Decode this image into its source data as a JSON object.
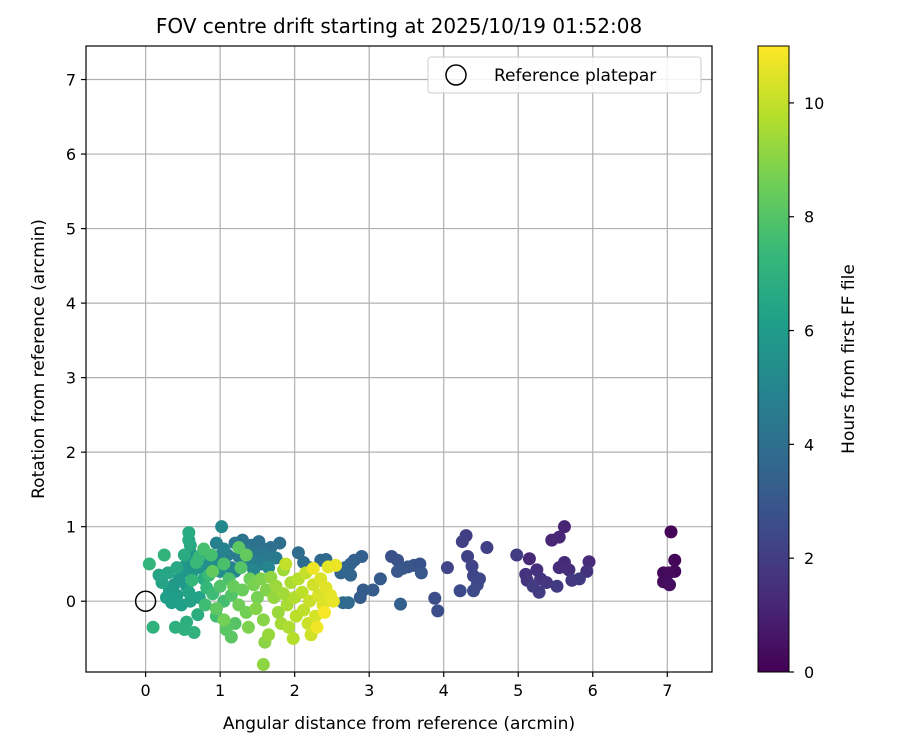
{
  "chart_data": {
    "type": "scatter",
    "title": "FOV centre drift starting at 2025/10/19 01:52:08",
    "xlabel": "Angular distance from reference (arcmin)",
    "ylabel": "Rotation from reference (arcmin)",
    "xlim": [
      -0.8,
      7.6
    ],
    "ylim": [
      -0.95,
      7.45
    ],
    "xticks": [
      0,
      1,
      2,
      3,
      4,
      5,
      6,
      7
    ],
    "yticks": [
      0,
      1,
      2,
      3,
      4,
      5,
      6,
      7
    ],
    "grid": true,
    "legend": {
      "placement": "top-right",
      "entries": [
        "Reference platepar"
      ]
    },
    "reference_point": {
      "x": 0,
      "y": 0
    },
    "colorbar": {
      "label": "Hours from first FF file",
      "range": [
        0,
        11
      ],
      "ticks": [
        0,
        2,
        4,
        6,
        8,
        10
      ],
      "colormap": "viridis",
      "colors": [
        "#440154",
        "#482878",
        "#3e4989",
        "#31688e",
        "#26828e",
        "#1f9e89",
        "#35b779",
        "#6ece58",
        "#b5de2b",
        "#fde725"
      ]
    },
    "points": [
      {
        "x": 7.05,
        "y": 0.93,
        "h": 0.1
      },
      {
        "x": 7.1,
        "y": 0.55,
        "h": 0.15
      },
      {
        "x": 7.1,
        "y": 0.4,
        "h": 0.2
      },
      {
        "x": 6.95,
        "y": 0.38,
        "h": 0.25
      },
      {
        "x": 7.02,
        "y": 0.38,
        "h": 0.3
      },
      {
        "x": 6.95,
        "y": 0.26,
        "h": 0.35
      },
      {
        "x": 7.03,
        "y": 0.22,
        "h": 0.4
      },
      {
        "x": 5.62,
        "y": 1.0,
        "h": 1.1
      },
      {
        "x": 5.55,
        "y": 0.86,
        "h": 1.15
      },
      {
        "x": 5.45,
        "y": 0.82,
        "h": 1.2
      },
      {
        "x": 5.15,
        "y": 0.57,
        "h": 1.25
      },
      {
        "x": 5.95,
        "y": 0.53,
        "h": 1.3
      },
      {
        "x": 5.62,
        "y": 0.52,
        "h": 1.35
      },
      {
        "x": 5.55,
        "y": 0.45,
        "h": 1.4
      },
      {
        "x": 5.68,
        "y": 0.42,
        "h": 1.45
      },
      {
        "x": 5.25,
        "y": 0.42,
        "h": 1.5
      },
      {
        "x": 5.1,
        "y": 0.36,
        "h": 1.55
      },
      {
        "x": 5.92,
        "y": 0.4,
        "h": 1.6
      },
      {
        "x": 5.3,
        "y": 0.3,
        "h": 1.65
      },
      {
        "x": 5.12,
        "y": 0.28,
        "h": 1.7
      },
      {
        "x": 5.38,
        "y": 0.25,
        "h": 1.75
      },
      {
        "x": 5.72,
        "y": 0.28,
        "h": 1.8
      },
      {
        "x": 5.82,
        "y": 0.3,
        "h": 1.85
      },
      {
        "x": 5.52,
        "y": 0.2,
        "h": 1.9
      },
      {
        "x": 5.2,
        "y": 0.2,
        "h": 1.95
      },
      {
        "x": 5.28,
        "y": 0.12,
        "h": 2.0
      },
      {
        "x": 4.98,
        "y": 0.62,
        "h": 2.0
      },
      {
        "x": 4.3,
        "y": 0.88,
        "h": 2.05
      },
      {
        "x": 4.25,
        "y": 0.8,
        "h": 2.1
      },
      {
        "x": 4.58,
        "y": 0.72,
        "h": 2.15
      },
      {
        "x": 4.32,
        "y": 0.6,
        "h": 2.2
      },
      {
        "x": 4.38,
        "y": 0.47,
        "h": 2.25
      },
      {
        "x": 4.05,
        "y": 0.45,
        "h": 2.3
      },
      {
        "x": 4.4,
        "y": 0.34,
        "h": 2.35
      },
      {
        "x": 4.48,
        "y": 0.3,
        "h": 2.4
      },
      {
        "x": 4.45,
        "y": 0.22,
        "h": 2.45
      },
      {
        "x": 4.22,
        "y": 0.14,
        "h": 2.5
      },
      {
        "x": 4.4,
        "y": 0.14,
        "h": 2.55
      },
      {
        "x": 3.88,
        "y": 0.04,
        "h": 2.6
      },
      {
        "x": 3.92,
        "y": -0.13,
        "h": 2.65
      },
      {
        "x": 3.3,
        "y": 0.6,
        "h": 2.7
      },
      {
        "x": 3.38,
        "y": 0.55,
        "h": 2.75
      },
      {
        "x": 3.68,
        "y": 0.5,
        "h": 2.8
      },
      {
        "x": 3.6,
        "y": 0.48,
        "h": 2.85
      },
      {
        "x": 3.45,
        "y": 0.44,
        "h": 2.9
      },
      {
        "x": 3.52,
        "y": 0.46,
        "h": 2.95
      },
      {
        "x": 3.38,
        "y": 0.4,
        "h": 3.0
      },
      {
        "x": 3.7,
        "y": 0.38,
        "h": 3.05
      },
      {
        "x": 3.15,
        "y": 0.3,
        "h": 3.1
      },
      {
        "x": 3.05,
        "y": 0.15,
        "h": 3.15
      },
      {
        "x": 2.92,
        "y": 0.15,
        "h": 3.2
      },
      {
        "x": 2.88,
        "y": 0.05,
        "h": 3.25
      },
      {
        "x": 3.42,
        "y": -0.04,
        "h": 3.3
      },
      {
        "x": 2.9,
        "y": 0.6,
        "h": 3.35
      },
      {
        "x": 2.8,
        "y": 0.55,
        "h": 3.4
      },
      {
        "x": 2.75,
        "y": 0.5,
        "h": 3.45
      },
      {
        "x": 2.68,
        "y": 0.45,
        "h": 3.5
      },
      {
        "x": 2.62,
        "y": 0.38,
        "h": 3.55
      },
      {
        "x": 2.75,
        "y": 0.35,
        "h": 3.6
      },
      {
        "x": 2.42,
        "y": 0.56,
        "h": 3.65
      },
      {
        "x": 2.35,
        "y": 0.55,
        "h": 3.7
      },
      {
        "x": 2.72,
        "y": -0.02,
        "h": 3.75
      },
      {
        "x": 2.65,
        "y": -0.02,
        "h": 3.8
      },
      {
        "x": 2.05,
        "y": 0.65,
        "h": 3.85
      },
      {
        "x": 2.12,
        "y": 0.52,
        "h": 3.9
      },
      {
        "x": 2.2,
        "y": 0.45,
        "h": 3.95
      },
      {
        "x": 1.8,
        "y": 0.78,
        "h": 4.0
      },
      {
        "x": 1.68,
        "y": 0.72,
        "h": 4.05
      },
      {
        "x": 1.52,
        "y": 0.8,
        "h": 4.1
      },
      {
        "x": 1.58,
        "y": 0.7,
        "h": 4.15
      },
      {
        "x": 1.42,
        "y": 0.75,
        "h": 4.2
      },
      {
        "x": 1.3,
        "y": 0.82,
        "h": 4.25
      },
      {
        "x": 1.2,
        "y": 0.78,
        "h": 4.3
      },
      {
        "x": 1.35,
        "y": 0.68,
        "h": 4.35
      },
      {
        "x": 1.48,
        "y": 0.62,
        "h": 4.4
      },
      {
        "x": 1.62,
        "y": 0.6,
        "h": 4.45
      },
      {
        "x": 1.75,
        "y": 0.58,
        "h": 4.5
      },
      {
        "x": 1.25,
        "y": 0.6,
        "h": 4.55
      },
      {
        "x": 1.1,
        "y": 0.62,
        "h": 4.6
      },
      {
        "x": 1.4,
        "y": 0.55,
        "h": 4.65
      },
      {
        "x": 1.55,
        "y": 0.5,
        "h": 4.7
      },
      {
        "x": 1.3,
        "y": 0.48,
        "h": 4.75
      },
      {
        "x": 1.15,
        "y": 0.45,
        "h": 4.8
      },
      {
        "x": 0.95,
        "y": 0.78,
        "h": 4.85
      },
      {
        "x": 1.05,
        "y": 0.7,
        "h": 4.9
      },
      {
        "x": 0.98,
        "y": 0.6,
        "h": 4.95
      },
      {
        "x": 1.2,
        "y": 0.4,
        "h": 5.0
      },
      {
        "x": 1.45,
        "y": 0.42,
        "h": 5.05
      },
      {
        "x": 1.65,
        "y": 0.45,
        "h": 5.1
      },
      {
        "x": 1.02,
        "y": 1.0,
        "h": 5.2
      },
      {
        "x": 0.85,
        "y": 0.55,
        "h": 5.3
      },
      {
        "x": 0.92,
        "y": 0.48,
        "h": 5.35
      },
      {
        "x": 0.8,
        "y": 0.42,
        "h": 5.4
      },
      {
        "x": 1.0,
        "y": 0.4,
        "h": 5.45
      },
      {
        "x": 0.75,
        "y": 0.6,
        "h": 5.5
      },
      {
        "x": 0.68,
        "y": 0.55,
        "h": 5.55
      },
      {
        "x": 0.6,
        "y": 0.65,
        "h": 5.6
      },
      {
        "x": 0.7,
        "y": 0.45,
        "h": 5.65
      },
      {
        "x": 0.55,
        "y": 0.5,
        "h": 5.7
      },
      {
        "x": 0.5,
        "y": 0.4,
        "h": 5.75
      },
      {
        "x": 0.62,
        "y": 0.38,
        "h": 5.8
      },
      {
        "x": 0.45,
        "y": 0.3,
        "h": 5.85
      },
      {
        "x": 0.38,
        "y": 0.22,
        "h": 5.9
      },
      {
        "x": 0.55,
        "y": 0.2,
        "h": 5.95
      },
      {
        "x": 0.32,
        "y": 0.15,
        "h": 6.0
      },
      {
        "x": 0.42,
        "y": 0.08,
        "h": 6.05
      },
      {
        "x": 0.28,
        "y": 0.05,
        "h": 6.1
      },
      {
        "x": 0.35,
        "y": -0.02,
        "h": 6.15
      },
      {
        "x": 0.48,
        "y": -0.05,
        "h": 6.2
      },
      {
        "x": 0.6,
        "y": 0.0,
        "h": 6.25
      },
      {
        "x": 0.72,
        "y": 0.05,
        "h": 6.3
      },
      {
        "x": 0.58,
        "y": 0.12,
        "h": 6.35
      },
      {
        "x": 0.22,
        "y": 0.25,
        "h": 6.4
      },
      {
        "x": 0.18,
        "y": 0.35,
        "h": 6.45
      },
      {
        "x": 0.3,
        "y": 0.38,
        "h": 6.5
      },
      {
        "x": 0.42,
        "y": 0.45,
        "h": 6.55
      },
      {
        "x": 0.58,
        "y": 0.82,
        "h": 6.6
      },
      {
        "x": 0.6,
        "y": 0.75,
        "h": 6.65
      },
      {
        "x": 0.58,
        "y": 0.92,
        "h": 6.7
      },
      {
        "x": 0.52,
        "y": 0.62,
        "h": 6.75
      },
      {
        "x": 0.78,
        "y": 0.3,
        "h": 6.8
      },
      {
        "x": 0.7,
        "y": -0.18,
        "h": 6.85
      },
      {
        "x": 0.55,
        "y": -0.28,
        "h": 6.9
      },
      {
        "x": 0.4,
        "y": -0.35,
        "h": 6.95
      },
      {
        "x": 0.52,
        "y": -0.38,
        "h": 7.0
      },
      {
        "x": 0.65,
        "y": -0.42,
        "h": 7.05
      },
      {
        "x": 0.1,
        "y": -0.35,
        "h": 7.1
      },
      {
        "x": 0.25,
        "y": 0.62,
        "h": 7.15
      },
      {
        "x": 0.05,
        "y": 0.5,
        "h": 7.2
      },
      {
        "x": 0.62,
        "y": 0.28,
        "h": 7.25
      },
      {
        "x": 0.82,
        "y": 0.18,
        "h": 7.3
      },
      {
        "x": 0.72,
        "y": 0.6,
        "h": 7.35
      },
      {
        "x": 0.68,
        "y": 0.52,
        "h": 7.4
      },
      {
        "x": 0.85,
        "y": 0.35,
        "h": 7.45
      },
      {
        "x": 0.9,
        "y": 0.1,
        "h": 7.5
      },
      {
        "x": 0.8,
        "y": -0.05,
        "h": 7.55
      },
      {
        "x": 0.95,
        "y": -0.2,
        "h": 7.6
      },
      {
        "x": 1.05,
        "y": 0.0,
        "h": 7.65
      },
      {
        "x": 0.88,
        "y": 0.62,
        "h": 7.7
      },
      {
        "x": 0.78,
        "y": 0.7,
        "h": 7.75
      },
      {
        "x": 1.05,
        "y": 0.5,
        "h": 7.8
      },
      {
        "x": 1.12,
        "y": 0.3,
        "h": 7.85
      },
      {
        "x": 1.0,
        "y": 0.2,
        "h": 7.9
      },
      {
        "x": 1.15,
        "y": 0.08,
        "h": 7.95
      },
      {
        "x": 1.28,
        "y": 0.45,
        "h": 8.0
      },
      {
        "x": 1.2,
        "y": -0.3,
        "h": 8.05
      },
      {
        "x": 1.08,
        "y": -0.38,
        "h": 8.1
      },
      {
        "x": 1.15,
        "y": -0.48,
        "h": 8.15
      },
      {
        "x": 1.25,
        "y": 0.72,
        "h": 8.2
      },
      {
        "x": 0.95,
        "y": -0.1,
        "h": 8.25
      },
      {
        "x": 0.9,
        "y": 0.4,
        "h": 8.3
      },
      {
        "x": 1.35,
        "y": 0.62,
        "h": 8.35
      },
      {
        "x": 1.18,
        "y": 0.2,
        "h": 8.4
      },
      {
        "x": 1.3,
        "y": 0.15,
        "h": 8.45
      },
      {
        "x": 1.4,
        "y": 0.3,
        "h": 8.5
      },
      {
        "x": 1.25,
        "y": -0.05,
        "h": 8.55
      },
      {
        "x": 1.35,
        "y": -0.15,
        "h": 8.6
      },
      {
        "x": 1.05,
        "y": -0.25,
        "h": 8.65
      },
      {
        "x": 1.5,
        "y": 0.05,
        "h": 8.7
      },
      {
        "x": 1.45,
        "y": 0.22,
        "h": 8.75
      },
      {
        "x": 1.38,
        "y": -0.35,
        "h": 8.8
      },
      {
        "x": 1.55,
        "y": 0.3,
        "h": 8.85
      },
      {
        "x": 1.62,
        "y": 0.15,
        "h": 8.9
      },
      {
        "x": 1.48,
        "y": -0.1,
        "h": 8.95
      },
      {
        "x": 1.58,
        "y": -0.25,
        "h": 9.0
      },
      {
        "x": 1.6,
        "y": -0.55,
        "h": 9.05
      },
      {
        "x": 1.58,
        "y": -0.85,
        "h": 9.1
      },
      {
        "x": 1.68,
        "y": 0.32,
        "h": 9.15
      },
      {
        "x": 1.72,
        "y": 0.05,
        "h": 9.2
      },
      {
        "x": 1.65,
        "y": -0.45,
        "h": 9.25
      },
      {
        "x": 1.78,
        "y": -0.15,
        "h": 9.3
      },
      {
        "x": 1.75,
        "y": 0.2,
        "h": 9.35
      },
      {
        "x": 1.85,
        "y": 0.42,
        "h": 9.4
      },
      {
        "x": 1.85,
        "y": 0.1,
        "h": 9.45
      },
      {
        "x": 1.82,
        "y": -0.3,
        "h": 9.5
      },
      {
        "x": 1.9,
        "y": -0.05,
        "h": 9.55
      },
      {
        "x": 1.95,
        "y": 0.25,
        "h": 9.6
      },
      {
        "x": 1.92,
        "y": -0.35,
        "h": 9.65
      },
      {
        "x": 2.0,
        "y": 0.05,
        "h": 9.7
      },
      {
        "x": 1.98,
        "y": -0.5,
        "h": 9.75
      },
      {
        "x": 2.05,
        "y": 0.3,
        "h": 9.8
      },
      {
        "x": 2.02,
        "y": -0.2,
        "h": 9.85
      },
      {
        "x": 2.1,
        "y": 0.12,
        "h": 9.9
      },
      {
        "x": 2.12,
        "y": -0.12,
        "h": 9.95
      },
      {
        "x": 1.88,
        "y": 0.5,
        "h": 10.0
      },
      {
        "x": 2.15,
        "y": 0.38,
        "h": 10.05
      },
      {
        "x": 2.2,
        "y": 0.0,
        "h": 10.1
      },
      {
        "x": 2.18,
        "y": -0.3,
        "h": 10.15
      },
      {
        "x": 2.22,
        "y": -0.45,
        "h": 10.2
      },
      {
        "x": 2.25,
        "y": 0.22,
        "h": 10.25
      },
      {
        "x": 2.28,
        "y": -0.2,
        "h": 10.3
      },
      {
        "x": 2.32,
        "y": 0.08,
        "h": 10.35
      },
      {
        "x": 2.35,
        "y": 0.3,
        "h": 10.4
      },
      {
        "x": 2.38,
        "y": -0.05,
        "h": 10.45
      },
      {
        "x": 2.42,
        "y": 0.18,
        "h": 10.5
      },
      {
        "x": 2.45,
        "y": 0.46,
        "h": 10.55
      },
      {
        "x": 2.48,
        "y": 0.08,
        "h": 10.6
      },
      {
        "x": 2.52,
        "y": 0.0,
        "h": 10.65
      },
      {
        "x": 2.55,
        "y": 0.48,
        "h": 10.7
      },
      {
        "x": 2.25,
        "y": 0.44,
        "h": 10.75
      },
      {
        "x": 2.3,
        "y": -0.35,
        "h": 10.8
      },
      {
        "x": 2.4,
        "y": -0.15,
        "h": 10.9
      }
    ]
  }
}
